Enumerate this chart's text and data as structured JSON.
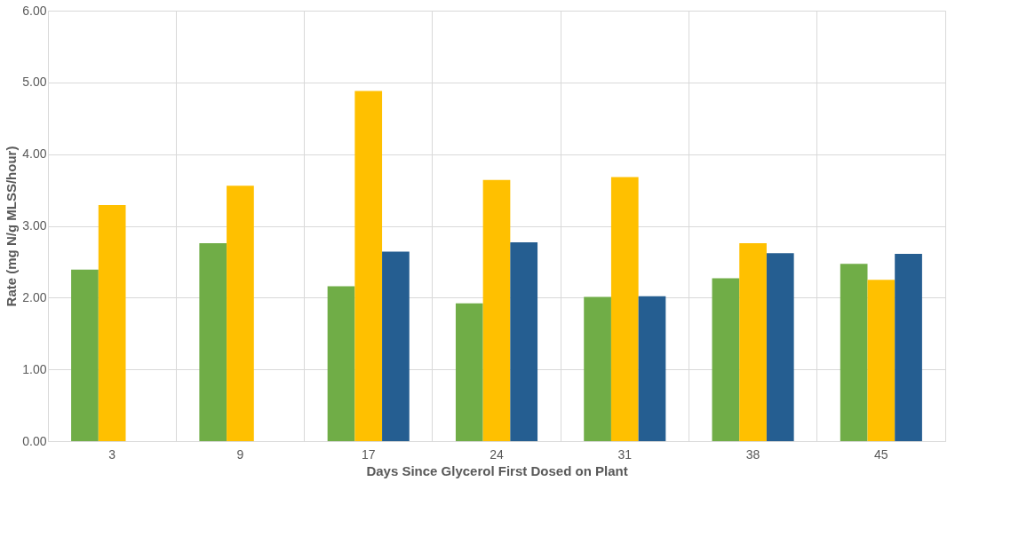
{
  "chart_data": {
    "type": "bar",
    "xlabel": "Days Since Glycerol First Dosed on Plant",
    "ylabel": "Rate (mg N/g MLSS/hour)",
    "categories": [
      "3",
      "9",
      "17",
      "24",
      "31",
      "38",
      "45"
    ],
    "series": [
      {
        "color": "#70ad47",
        "values": [
          2.39,
          2.76,
          2.16,
          1.92,
          2.01,
          2.27,
          2.47
        ]
      },
      {
        "color": "#ffc000",
        "values": [
          3.29,
          3.56,
          4.88,
          3.64,
          3.68,
          2.76,
          2.25
        ]
      },
      {
        "color": "#255e91",
        "values": [
          null,
          null,
          2.64,
          2.77,
          2.02,
          2.62,
          2.61
        ]
      }
    ],
    "ylim": [
      0,
      6
    ],
    "yticks": [
      {
        "value": 0,
        "label": "0.00"
      },
      {
        "value": 1,
        "label": "1.00"
      },
      {
        "value": 2,
        "label": "2.00"
      },
      {
        "value": 3,
        "label": "3.00"
      },
      {
        "value": 4,
        "label": "4.00"
      },
      {
        "value": 5,
        "label": "5.00"
      },
      {
        "value": 6,
        "label": "6.00"
      }
    ],
    "grid": true,
    "legend": false
  }
}
